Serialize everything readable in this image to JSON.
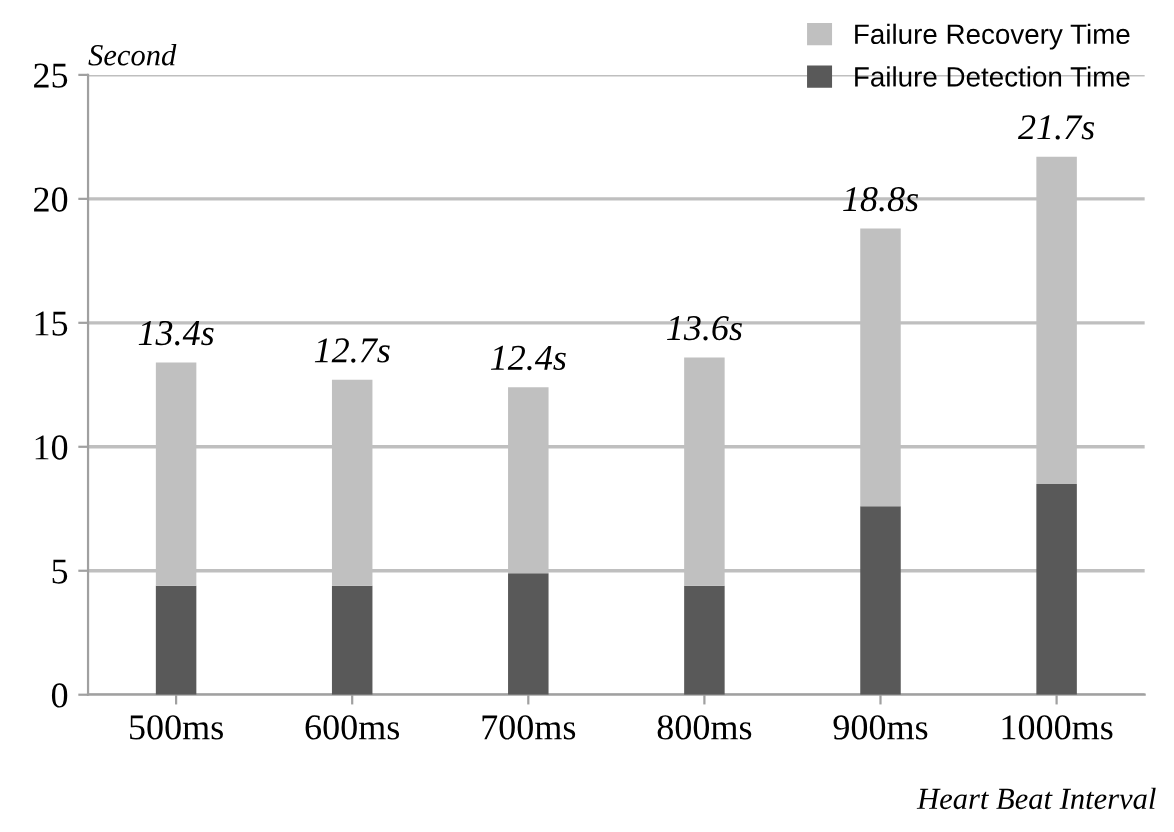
{
  "chart_data": {
    "type": "bar",
    "stacked": true,
    "categories": [
      "500ms",
      "600ms",
      "700ms",
      "800ms",
      "900ms",
      "1000ms"
    ],
    "series": [
      {
        "name": "Failure Detection Time",
        "color": "#595959",
        "values": [
          4.4,
          4.4,
          4.9,
          4.4,
          7.6,
          8.5
        ]
      },
      {
        "name": "Failure Recovery Time",
        "color": "#c0c0c0",
        "values": [
          9.0,
          8.3,
          7.5,
          9.2,
          11.2,
          13.2
        ]
      }
    ],
    "totals": [
      "13.4s",
      "12.7s",
      "12.4s",
      "13.6s",
      "18.8s",
      "21.7s"
    ],
    "ylabel": "Second",
    "xlabel": "Heart Beat Interval",
    "ylim": [
      0,
      25
    ],
    "yticks": [
      0,
      5,
      10,
      15,
      20,
      25
    ],
    "grid": "y",
    "legend": "top right"
  }
}
